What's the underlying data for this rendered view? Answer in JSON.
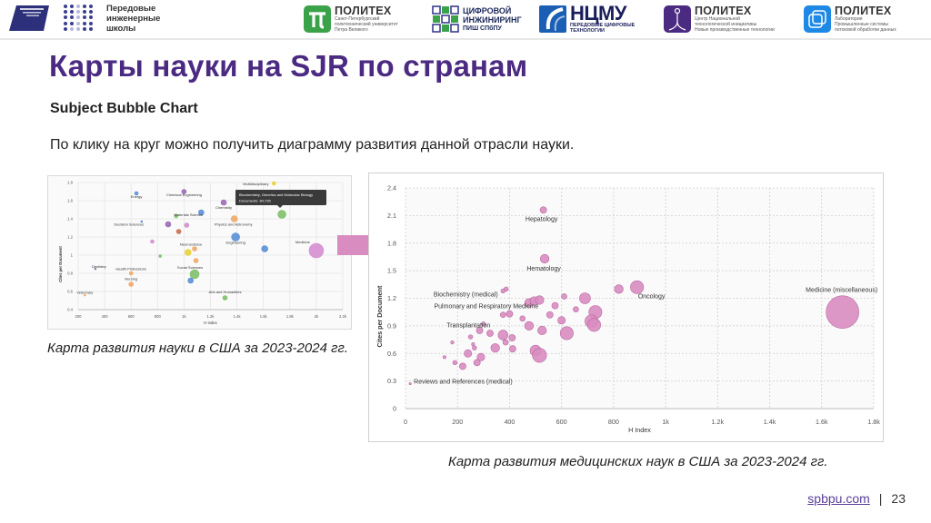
{
  "header": {
    "national_projects_logo": "national-projects-russia-logo",
    "pish_logo_text": [
      "Передовые",
      "инженерные",
      "школы"
    ],
    "partners": [
      {
        "title": "ПОЛИТЕХ",
        "subtitle": [
          "Санкт-Петербургский",
          "политехнический университет",
          "Петра Великого"
        ],
        "color": "#3aa34a"
      },
      {
        "title": "ЦИФРОВОЙ",
        "title2": "ИНЖИНИРИНГ",
        "subtitle": [
          "ПИШ СПбПУ"
        ],
        "color": "#3b3f8f"
      },
      {
        "title": "НЦМУ",
        "subtitle": [
          "ПЕРЕДОВЫЕ ЦИФРОВЫЕ",
          "ТЕХНОЛОГИИ"
        ],
        "color": "#1a5fb4"
      },
      {
        "title": "ПОЛИТЕХ",
        "subtitle": [
          "Центр Национальной",
          "технологической инициативы",
          "Новые производственные технологии"
        ],
        "color": "#4b2a82"
      },
      {
        "title": "ПОЛИТЕХ",
        "subtitle": [
          "Лаборатория",
          "Промышленные системы",
          "потоковой обработки данных"
        ],
        "color": "#1e88e5"
      }
    ]
  },
  "page": {
    "title": "Карты науки на SJR по странам",
    "subtitle": "Subject Bubble Chart",
    "description": "По клику на круг можно получить диаграмму развития данной отрасли науки.",
    "caption_left": "Карта развития науки в США за 2023-2024 гг.",
    "caption_right": "Карта развития медицинских наук в США за 2023-2024 гг.",
    "footer_link": "spbpu.com",
    "footer_separator": "|",
    "page_number": "23"
  },
  "chart_data": [
    {
      "type": "scatter",
      "title": "Subject Bubble Chart — USA 2023-2024 (all subject areas)",
      "xlabel": "H Index",
      "ylabel": "Cites per Document",
      "xlim": [
        200,
        2200
      ],
      "ylim": [
        0.4,
        1.8
      ],
      "x_ticks": [
        "200",
        "400",
        "600",
        "800",
        "1k",
        "1.2k",
        "1.4k",
        "1.6k",
        "1.8k",
        "2k",
        "2.2k"
      ],
      "y_ticks": [
        "0.4",
        "0.6",
        "0.8",
        "1",
        "1.2",
        "1.4",
        "1.6",
        "1.8"
      ],
      "grid": true,
      "tooltip": {
        "title": "Biochemistry, Genetics and Molecular Biology",
        "documents": "Documents: 84,735"
      },
      "points": [
        {
          "label": "Energy",
          "x": 640,
          "y": 1.68,
          "r": 2,
          "color": "#5b8fd6"
        },
        {
          "label": "Chemical Engineering",
          "x": 1000,
          "y": 1.7,
          "r": 2.5,
          "color": "#9b6cb5"
        },
        {
          "label": "Multidisciplinary",
          "x": 1680,
          "y": 1.79,
          "r": 2,
          "color": "#e8d23a"
        },
        {
          "label": "Chemistry",
          "x": 1300,
          "y": 1.58,
          "r": 3,
          "color": "#9b6cb5"
        },
        {
          "label": "Biochemistry, Genetics and Molecular Biology",
          "x": 1740,
          "y": 1.45,
          "r": 4.5,
          "color": "#7ec06a"
        },
        {
          "label": "Decision Sciences",
          "x": 680,
          "y": 1.37,
          "r": 1,
          "color": "#5b8fd6"
        },
        {
          "label": "Materials Science",
          "x": 1130,
          "y": 1.47,
          "r": 3,
          "color": "#5b8fd6"
        },
        {
          "label": "Physics and Astronomy",
          "x": 1380,
          "y": 1.4,
          "r": 3.5,
          "color": "#f0a868"
        },
        {
          "label": "",
          "x": 940,
          "y": 1.43,
          "r": 2,
          "color": "#7ec06a"
        },
        {
          "label": "",
          "x": 880,
          "y": 1.34,
          "r": 3,
          "color": "#9b6cb5"
        },
        {
          "label": "",
          "x": 1020,
          "y": 1.33,
          "r": 2.5,
          "color": "#d68ed1"
        },
        {
          "label": "",
          "x": 960,
          "y": 1.26,
          "r": 2.5,
          "color": "#c9704e"
        },
        {
          "label": "",
          "x": 760,
          "y": 1.15,
          "r": 2,
          "color": "#d68ed1"
        },
        {
          "label": "Engineering",
          "x": 1390,
          "y": 1.2,
          "r": 4.5,
          "color": "#5b8fd6"
        },
        {
          "label": "Neuroscience",
          "x": 1080,
          "y": 1.07,
          "r": 2.5,
          "color": "#f0a868"
        },
        {
          "label": "",
          "x": 1030,
          "y": 1.03,
          "r": 3.5,
          "color": "#e8d23a"
        },
        {
          "label": "",
          "x": 1610,
          "y": 1.07,
          "r": 3.5,
          "color": "#5b8fd6"
        },
        {
          "label": "",
          "x": 820,
          "y": 0.99,
          "r": 1.5,
          "color": "#7ec06a"
        },
        {
          "label": "",
          "x": 1090,
          "y": 0.94,
          "r": 2.5,
          "color": "#f0a868"
        },
        {
          "label": "Medicine",
          "x": 2000,
          "y": 1.05,
          "r": 8,
          "color": "#d68ed1"
        },
        {
          "label": "Dentistry",
          "x": 330,
          "y": 0.85,
          "r": 1,
          "color": "#9b6cb5"
        },
        {
          "label": "Health Professions",
          "x": 600,
          "y": 0.8,
          "r": 2,
          "color": "#f0a868"
        },
        {
          "label": "Social Sciences",
          "x": 1080,
          "y": 0.79,
          "r": 5,
          "color": "#7ec06a"
        },
        {
          "label": "",
          "x": 1050,
          "y": 0.72,
          "r": 3,
          "color": "#5b8fd6"
        },
        {
          "label": "Nursing",
          "x": 600,
          "y": 0.68,
          "r": 2.5,
          "color": "#f0a868"
        },
        {
          "label": "Veterinary",
          "x": 250,
          "y": 0.56,
          "r": 1,
          "color": "#f0a868"
        },
        {
          "label": "Arts and Humanities",
          "x": 1310,
          "y": 0.53,
          "r": 2.5,
          "color": "#7ec06a"
        }
      ]
    },
    {
      "type": "scatter",
      "title": "Subject Bubble Chart — USA 2023-2024 (medical sciences)",
      "xlabel": "H Index",
      "ylabel": "Cites per Document",
      "xlim": [
        0,
        1800
      ],
      "ylim": [
        0,
        2.4
      ],
      "x_ticks": [
        "0",
        "200",
        "400",
        "600",
        "800",
        "1k",
        "1.2k",
        "1.4k",
        "1.6k",
        "1.8k"
      ],
      "y_ticks": [
        "0",
        "0.3",
        "0.6",
        "0.9",
        "1.2",
        "1.5",
        "1.8",
        "2.1",
        "2.4"
      ],
      "grid": true,
      "color": "#d98cc0",
      "points": [
        {
          "label": "Hepatology",
          "x": 530,
          "y": 2.16,
          "r": 3
        },
        {
          "label": "Hematology",
          "x": 535,
          "y": 1.63,
          "r": 4
        },
        {
          "label": "Biochemistry (medical)",
          "x": 375,
          "y": 1.28,
          "r": 2
        },
        {
          "label": "",
          "x": 387,
          "y": 1.3,
          "r": 2
        },
        {
          "label": "Pulmonary and Respiratory Medicine",
          "x": 475,
          "y": 1.15,
          "r": 4
        },
        {
          "label": "",
          "x": 495,
          "y": 1.17,
          "r": 4
        },
        {
          "label": "",
          "x": 515,
          "y": 1.18,
          "r": 4
        },
        {
          "label": "Transplantation",
          "x": 375,
          "y": 1.02,
          "r": 2.5
        },
        {
          "label": "",
          "x": 400,
          "y": 1.03,
          "r": 3
        },
        {
          "label": "",
          "x": 450,
          "y": 0.98,
          "r": 2.5
        },
        {
          "label": "Oncology",
          "x": 890,
          "y": 1.32,
          "r": 6
        },
        {
          "label": "",
          "x": 820,
          "y": 1.3,
          "r": 4
        },
        {
          "label": "",
          "x": 610,
          "y": 1.22,
          "r": 2.5
        },
        {
          "label": "",
          "x": 690,
          "y": 1.2,
          "r": 5
        },
        {
          "label": "",
          "x": 575,
          "y": 1.12,
          "r": 3
        },
        {
          "label": "",
          "x": 655,
          "y": 1.08,
          "r": 2.5
        },
        {
          "label": "",
          "x": 730,
          "y": 1.05,
          "r": 6
        },
        {
          "label": "",
          "x": 715,
          "y": 0.95,
          "r": 6
        },
        {
          "label": "",
          "x": 725,
          "y": 0.91,
          "r": 6
        },
        {
          "label": "",
          "x": 555,
          "y": 1.02,
          "r": 3
        },
        {
          "label": "",
          "x": 600,
          "y": 0.96,
          "r": 3.5
        },
        {
          "label": "",
          "x": 475,
          "y": 0.9,
          "r": 4
        },
        {
          "label": "",
          "x": 525,
          "y": 0.85,
          "r": 4
        },
        {
          "label": "",
          "x": 620,
          "y": 0.82,
          "r": 6
        },
        {
          "label": "",
          "x": 300,
          "y": 0.92,
          "r": 2
        },
        {
          "label": "",
          "x": 285,
          "y": 0.85,
          "r": 3
        },
        {
          "label": "",
          "x": 325,
          "y": 0.82,
          "r": 3
        },
        {
          "label": "",
          "x": 375,
          "y": 0.8,
          "r": 4.5
        },
        {
          "label": "",
          "x": 410,
          "y": 0.77,
          "r": 3
        },
        {
          "label": "",
          "x": 250,
          "y": 0.78,
          "r": 2
        },
        {
          "label": "",
          "x": 385,
          "y": 0.72,
          "r": 2.5
        },
        {
          "label": "",
          "x": 412,
          "y": 0.65,
          "r": 3
        },
        {
          "label": "",
          "x": 180,
          "y": 0.72,
          "r": 1.5
        },
        {
          "label": "",
          "x": 260,
          "y": 0.7,
          "r": 1.5
        },
        {
          "label": "",
          "x": 265,
          "y": 0.66,
          "r": 2
        },
        {
          "label": "",
          "x": 345,
          "y": 0.66,
          "r": 4
        },
        {
          "label": "",
          "x": 240,
          "y": 0.6,
          "r": 3.5
        },
        {
          "label": "",
          "x": 290,
          "y": 0.56,
          "r": 3.5
        },
        {
          "label": "",
          "x": 500,
          "y": 0.63,
          "r": 5
        },
        {
          "label": "",
          "x": 515,
          "y": 0.58,
          "r": 6.5
        },
        {
          "label": "",
          "x": 150,
          "y": 0.56,
          "r": 1.5
        },
        {
          "label": "",
          "x": 190,
          "y": 0.5,
          "r": 2
        },
        {
          "label": "",
          "x": 275,
          "y": 0.5,
          "r": 3
        },
        {
          "label": "",
          "x": 220,
          "y": 0.46,
          "r": 3
        },
        {
          "label": "Reviews and References (medical)",
          "x": 18,
          "y": 0.27,
          "r": 1
        },
        {
          "label": "Medicine (miscellaneous)",
          "x": 1680,
          "y": 1.05,
          "r": 15
        }
      ]
    }
  ]
}
